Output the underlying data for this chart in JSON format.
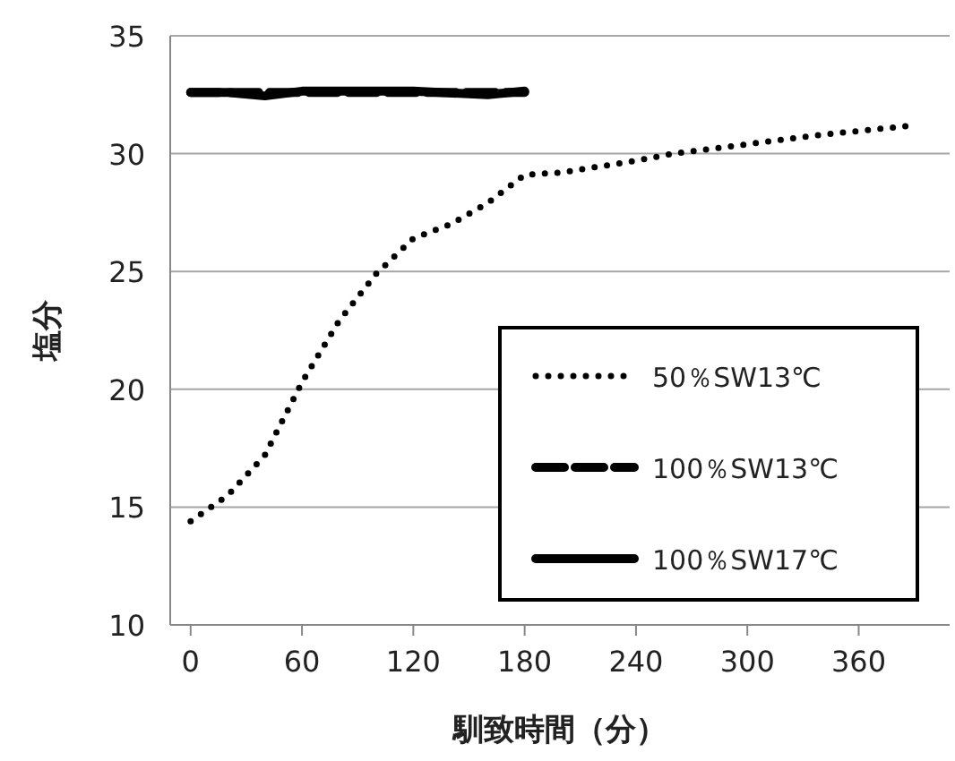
{
  "chart_data": {
    "type": "line",
    "xlabel": "馴致時間（分）",
    "ylabel": "塩分",
    "xlim": [
      -11,
      409
    ],
    "xticks": [
      0,
      60,
      120,
      180,
      240,
      300,
      360
    ],
    "ylim": [
      10,
      35
    ],
    "yticks": [
      10,
      15,
      20,
      25,
      30,
      35
    ],
    "grid": "y",
    "legend": "bottom right",
    "marker": "none",
    "series": [
      {
        "name": "50％SW13℃",
        "color": "#000000",
        "line_style": "dotted",
        "x": [
          0,
          20,
          40,
          60,
          80,
          100,
          120,
          140,
          160,
          180,
          200,
          240,
          260,
          300,
          340,
          390
        ],
        "values": [
          14.4,
          15.5,
          17.2,
          20.3,
          22.9,
          24.9,
          26.4,
          27.0,
          27.9,
          29.1,
          29.2,
          29.7,
          30.0,
          30.4,
          30.8,
          31.2
        ]
      },
      {
        "name": "100％SW13℃",
        "color": "#000000",
        "line_style": "dashed",
        "x": [
          0,
          60,
          120,
          180
        ],
        "values": [
          32.6,
          32.6,
          32.6,
          32.6
        ]
      },
      {
        "name": "100％SW17℃",
        "color": "#000000",
        "line_style": "solid",
        "x": [
          0,
          20,
          40,
          60,
          120,
          160,
          180
        ],
        "values": [
          32.6,
          32.6,
          32.45,
          32.65,
          32.65,
          32.5,
          32.65
        ]
      }
    ]
  }
}
